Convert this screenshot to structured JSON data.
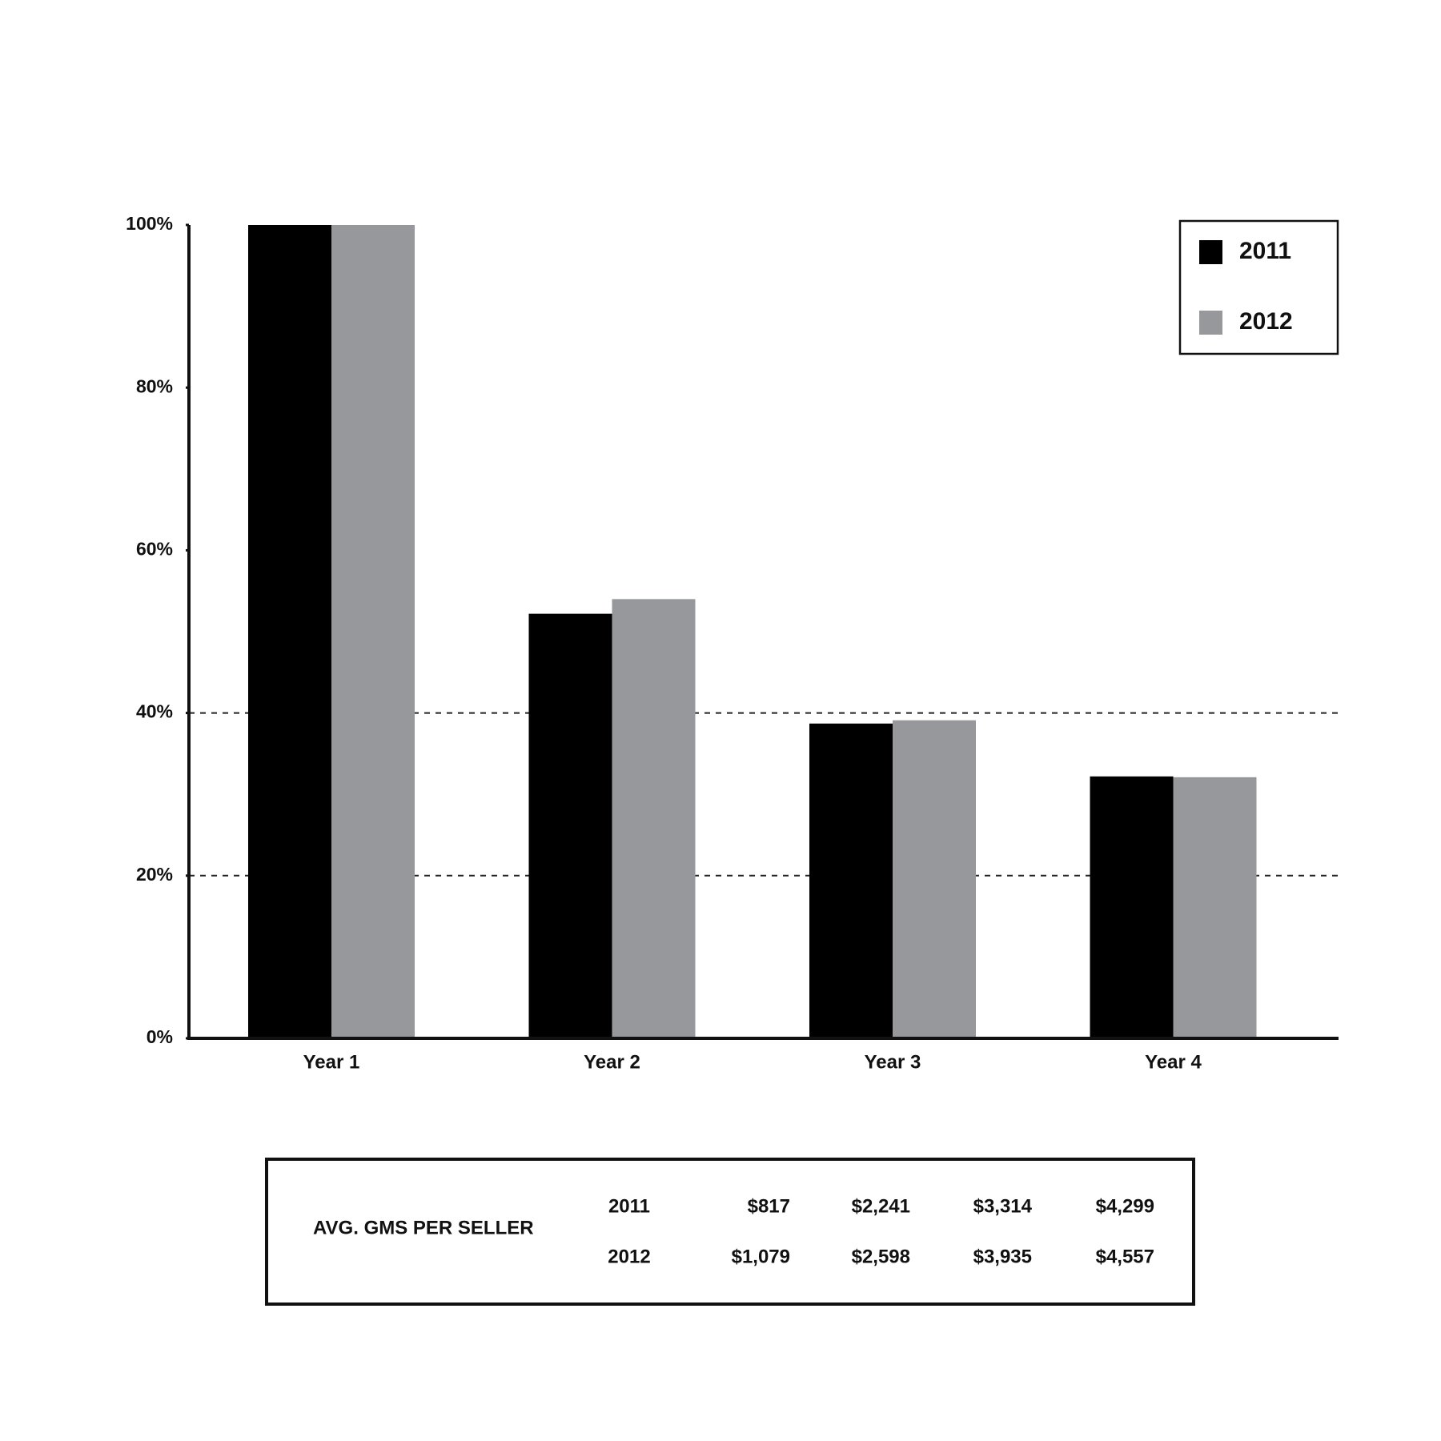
{
  "chart_data": {
    "type": "bar",
    "categories": [
      "Year 1",
      "Year 2",
      "Year 3",
      "Year 4"
    ],
    "series": [
      {
        "name": "2011",
        "color": "#000000",
        "values": [
          100,
          52.2,
          38.7,
          32.2
        ]
      },
      {
        "name": "2012",
        "color": "#97989b",
        "values": [
          100,
          54.0,
          39.1,
          32.1
        ]
      }
    ],
    "ylim": [
      0,
      100
    ],
    "yticks": [
      {
        "value": 0,
        "label": "0%"
      },
      {
        "value": 20,
        "label": "20%"
      },
      {
        "value": 40,
        "label": "40%"
      },
      {
        "value": 60,
        "label": "60%"
      },
      {
        "value": 80,
        "label": "80%"
      },
      {
        "value": 100,
        "label": "100%"
      }
    ],
    "gridlines": [
      20,
      40
    ],
    "legend": "top-right"
  },
  "table": {
    "title": "AVG. GMS PER SELLER",
    "rows": [
      [
        "2011",
        "$817",
        "$2,241",
        "$3,314",
        "$4,299"
      ],
      [
        "2012",
        "$1,079",
        "$2,598",
        "$3,935",
        "$4,557"
      ]
    ]
  }
}
